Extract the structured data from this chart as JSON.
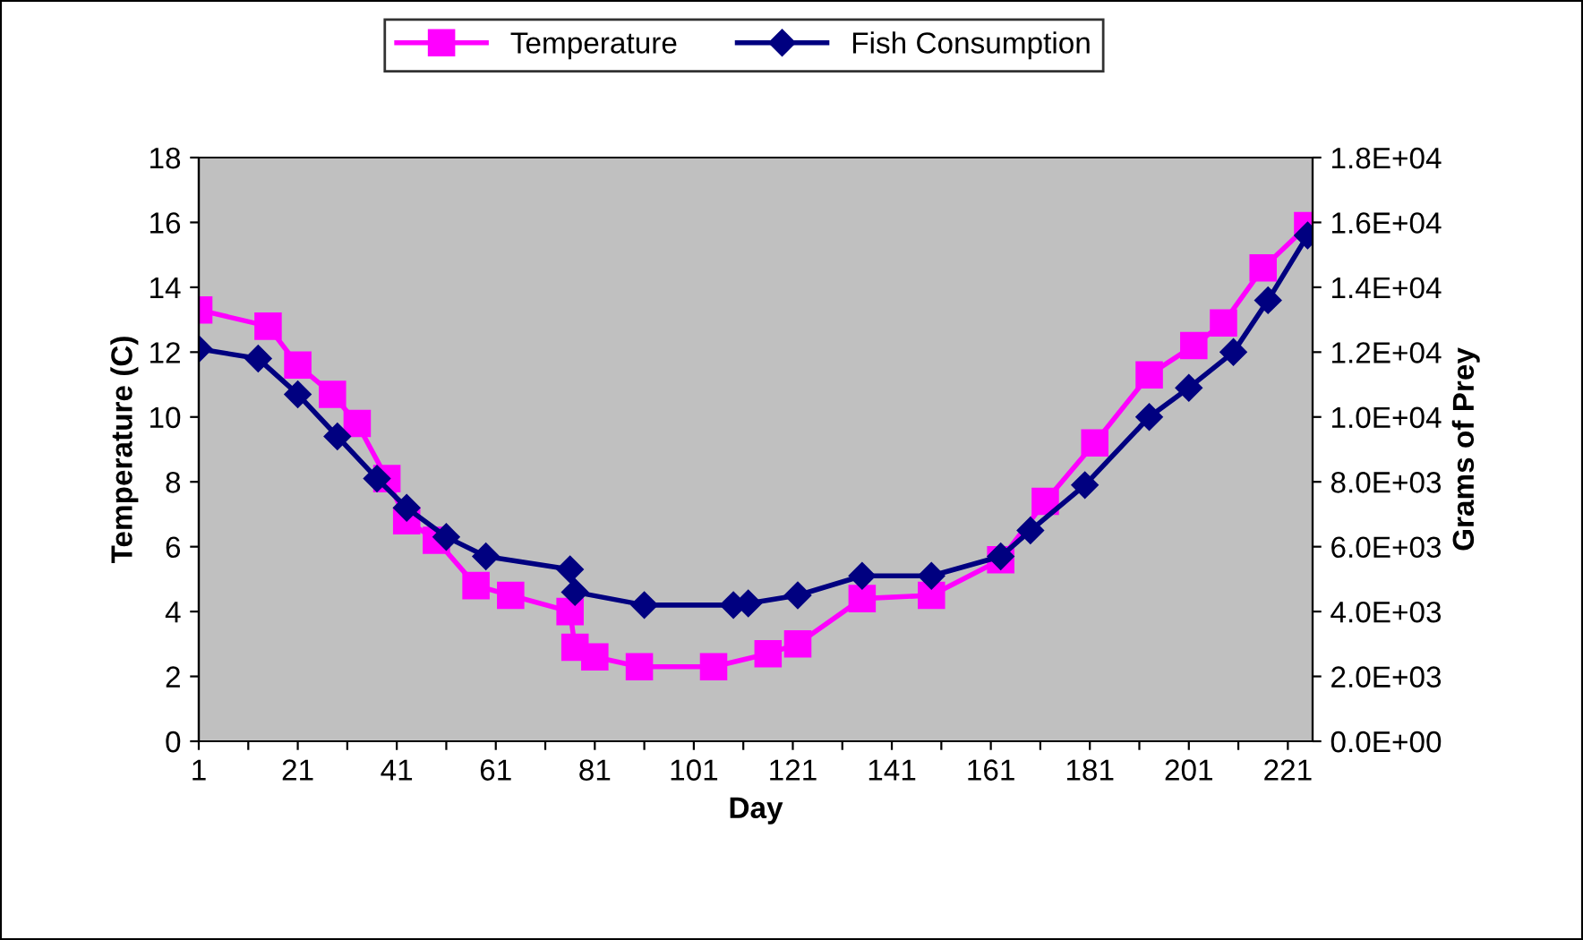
{
  "chart_data": {
    "type": "line",
    "xlabel": "Day",
    "ylabel": "Temperature (C)",
    "y2label": "Grams of Prey",
    "series": [
      {
        "name": "Temperature",
        "color": "#ff00ff",
        "marker": "square",
        "x": [
          1,
          15,
          21,
          28,
          33,
          39,
          43,
          49,
          57,
          64,
          76,
          77,
          81,
          90,
          105,
          116,
          122,
          135,
          149,
          163,
          172,
          182,
          193,
          202,
          208,
          216,
          225
        ],
        "values": [
          13.3,
          12.8,
          11.6,
          10.7,
          9.8,
          8.1,
          6.8,
          6.2,
          4.8,
          4.5,
          4.0,
          2.9,
          2.6,
          2.3,
          2.3,
          2.7,
          3.0,
          4.4,
          4.5,
          5.6,
          7.4,
          9.2,
          11.3,
          12.2,
          12.9,
          14.6,
          15.9
        ]
      },
      {
        "name": "Fish Consumption",
        "color": "#000080",
        "marker": "diamond",
        "axis": "y2",
        "x": [
          1,
          13,
          21,
          29,
          37,
          43,
          51,
          59,
          76,
          77,
          91,
          109,
          112,
          122,
          135,
          149,
          163,
          169,
          180,
          193,
          201,
          210,
          217,
          225
        ],
        "values": [
          12100,
          11800,
          10700,
          9400,
          8100,
          7200,
          6300,
          5700,
          5300,
          4600,
          4200,
          4200,
          4250,
          4500,
          5100,
          5100,
          5700,
          6500,
          7900,
          10000,
          10900,
          12000,
          13600,
          15600
        ]
      }
    ],
    "xlim": [
      1,
      226
    ],
    "xticks": [
      1,
      {
        "value": 11,
        "label": null
      },
      21,
      {
        "value": 31,
        "label": null
      },
      41,
      {
        "value": 51,
        "label": null
      },
      61,
      {
        "value": 71,
        "label": null
      },
      81,
      {
        "value": 91,
        "label": null
      },
      101,
      {
        "value": 111,
        "label": null
      },
      121,
      {
        "value": 131,
        "label": null
      },
      141,
      {
        "value": 151,
        "label": null
      },
      161,
      {
        "value": 171,
        "label": null
      },
      181,
      {
        "value": 191,
        "label": null
      },
      201,
      {
        "value": 211,
        "label": null
      },
      221
    ],
    "ylim": [
      0,
      18
    ],
    "yticks": [
      0,
      2,
      4,
      6,
      8,
      10,
      12,
      14,
      16,
      18
    ],
    "y2lim": [
      0,
      18000
    ],
    "y2ticks": [
      {
        "value": 0,
        "label": "0.0E+00"
      },
      {
        "value": 2000,
        "label": "2.0E+03"
      },
      {
        "value": 4000,
        "label": "4.0E+03"
      },
      {
        "value": 6000,
        "label": "6.0E+03"
      },
      {
        "value": 8000,
        "label": "8.0E+03"
      },
      {
        "value": 10000,
        "label": "1.0E+04"
      },
      {
        "value": 12000,
        "label": "1.2E+04"
      },
      {
        "value": 14000,
        "label": "1.4E+04"
      },
      {
        "value": 16000,
        "label": "1.6E+04"
      },
      {
        "value": 18000,
        "label": "1.8E+04"
      }
    ],
    "grid": false,
    "legend": "top"
  }
}
